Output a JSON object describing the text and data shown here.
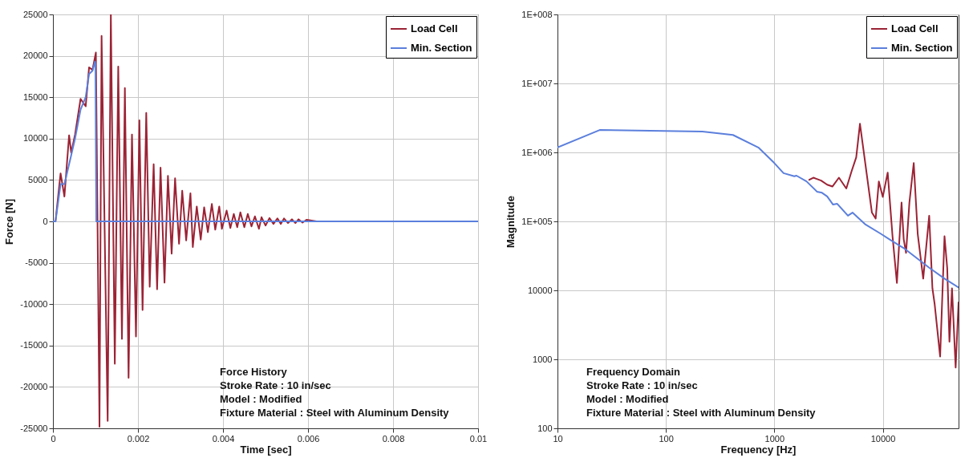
{
  "chart_data": [
    {
      "type": "line",
      "xlabel": "Time [sec]",
      "ylabel": "Force [N]",
      "xlim": [
        0,
        0.01
      ],
      "xticks": [
        0,
        0.002,
        0.004,
        0.006,
        0.008,
        0.01
      ],
      "ylim": [
        -25000,
        25000
      ],
      "yticks": [
        -25000,
        -20000,
        -15000,
        -10000,
        -5000,
        0,
        5000,
        10000,
        15000,
        20000,
        25000
      ],
      "grid": true,
      "legend": "top right",
      "marker": "none",
      "line_style": "solid",
      "annotations": [
        "Force History",
        "Stroke Rate : 10 in/sec",
        "Model : Modified",
        "Fixture Material : Steel with Aluminum Density"
      ],
      "series": [
        {
          "name": "Load Cell",
          "color": "#9b2335",
          "x": [
            0,
            6e-05,
            0.00018,
            0.00027,
            0.00038,
            0.00043,
            0.00052,
            0.00065,
            0.00077,
            0.00085,
            0.00093,
            0.00101,
            0.001095,
            0.001144,
            0.001287,
            0.001362,
            0.001455,
            0.001536,
            0.001623,
            0.001692,
            0.001779,
            0.001859,
            0.001953,
            0.002034,
            0.002108,
            0.002195,
            0.002276,
            0.002369,
            0.00245,
            0.002531,
            0.002624,
            0.002705,
            0.002792,
            0.002873,
            0.002966,
            0.003041,
            0.003134,
            0.003234,
            0.00329,
            0.003383,
            0.003476,
            0.003557,
            0.003644,
            0.003738,
            0.003818,
            0.003912,
            0.003974,
            0.004086,
            0.004173,
            0.004254,
            0.004335,
            0.004409,
            0.004502,
            0.004583,
            0.00467,
            0.004751,
            0.004845,
            0.004907,
            0.005,
            0.005093,
            0.005187,
            0.00528,
            0.005361,
            0.005435,
            0.005529,
            0.005622,
            0.005703,
            0.005777,
            0.005871,
            0.005964,
            0.0062,
            0.01
          ],
          "values": [
            0,
            0,
            5800,
            3000,
            10400,
            8300,
            10500,
            14800,
            13900,
            18600,
            18300,
            20400,
            -24800,
            22400,
            -24100,
            25000,
            -17200,
            18700,
            -14200,
            16100,
            -18900,
            10500,
            -13900,
            12200,
            -10700,
            13100,
            -7900,
            6900,
            -8200,
            6500,
            -7400,
            5500,
            -3900,
            5200,
            -2700,
            3700,
            -2300,
            3400,
            -3100,
            1800,
            -2200,
            1700,
            -1300,
            2100,
            -1000,
            1800,
            -900,
            1300,
            -800,
            900,
            -700,
            1100,
            -700,
            900,
            -600,
            600,
            -900,
            500,
            -500,
            400,
            -300,
            350,
            -300,
            350,
            -200,
            250,
            -200,
            250,
            -150,
            200,
            0,
            0
          ]
        },
        {
          "name": "Min. Section",
          "color": "#5b7fdc",
          "x": [
            0,
            6e-05,
            0.00018,
            0.00027,
            0.00043,
            0.00052,
            0.00065,
            0.00077,
            0.00085,
            0.00093,
            0.00099,
            0.001,
            0.00102,
            0.01
          ],
          "values": [
            0,
            0,
            4500,
            4500,
            8000,
            10000,
            13500,
            15000,
            17800,
            18200,
            19300,
            19000,
            0,
            0
          ]
        }
      ]
    },
    {
      "type": "line",
      "xlabel": "Frequency [Hz]",
      "ylabel": "Magnitude",
      "log": "xy",
      "xlim": [
        10,
        50000
      ],
      "xticks": [
        10,
        100,
        1000,
        10000
      ],
      "ylim": [
        100,
        100000000
      ],
      "yticks": [
        100,
        1000,
        10000,
        {
          "value": 100000,
          "label": "1E+005"
        },
        {
          "value": 1000000,
          "label": "1E+006"
        },
        {
          "value": 10000000,
          "label": "1E+007"
        },
        {
          "value": 100000000,
          "label": "1E+008"
        }
      ],
      "grid": true,
      "legend": "top right",
      "marker": "none",
      "line_style": "solid",
      "annotations": [
        "Frequency Domain",
        "Stroke Rate : 10 in/sec",
        "Model : Modified",
        "Fixture Material : Steel with Aluminum Density"
      ],
      "series": [
        {
          "name": "Load Cell",
          "color": "#9b2335",
          "x": [
            2100,
            2290,
            2700,
            3070,
            3430,
            3940,
            4610,
            5170,
            5690,
            6160,
            6630,
            7940,
            8600,
            9200,
            10000,
            11100,
            12300,
            13500,
            14900,
            15600,
            16400,
            17600,
            19300,
            21000,
            23600,
            26800,
            28700,
            30100,
            33800,
            37100,
            39300,
            41200,
            43500,
            47000,
            50000
          ],
          "values": [
            400000,
            430000,
            390000,
            340000,
            320000,
            430000,
            300000,
            540000,
            850000,
            2600000,
            1100000,
            134000,
            110000,
            380000,
            226000,
            510000,
            61000,
            12800,
            187000,
            55000,
            35000,
            187000,
            700000,
            66000,
            14800,
            121000,
            10700,
            6300,
            1100,
            61000,
            21000,
            1800,
            10700,
            760,
            6700
          ]
        },
        {
          "name": "Min. Section",
          "color": "#5b7fdc",
          "x": [
            10,
            24.5,
            217,
            415,
            711,
            1000,
            1216,
            1528,
            1600,
            1980,
            2470,
            2750,
            3070,
            3480,
            3800,
            4770,
            5260,
            6930,
            9600,
            11900,
            15600,
            26800,
            37100,
            50000
          ],
          "values": [
            1180000,
            2110000,
            2000000,
            1790000,
            1180000,
            700000,
            500000,
            450000,
            460000,
            380000,
            270000,
            260000,
            230000,
            175000,
            180000,
            121000,
            134000,
            90000,
            66000,
            53000,
            41000,
            21300,
            14800,
            11000
          ]
        }
      ]
    }
  ]
}
